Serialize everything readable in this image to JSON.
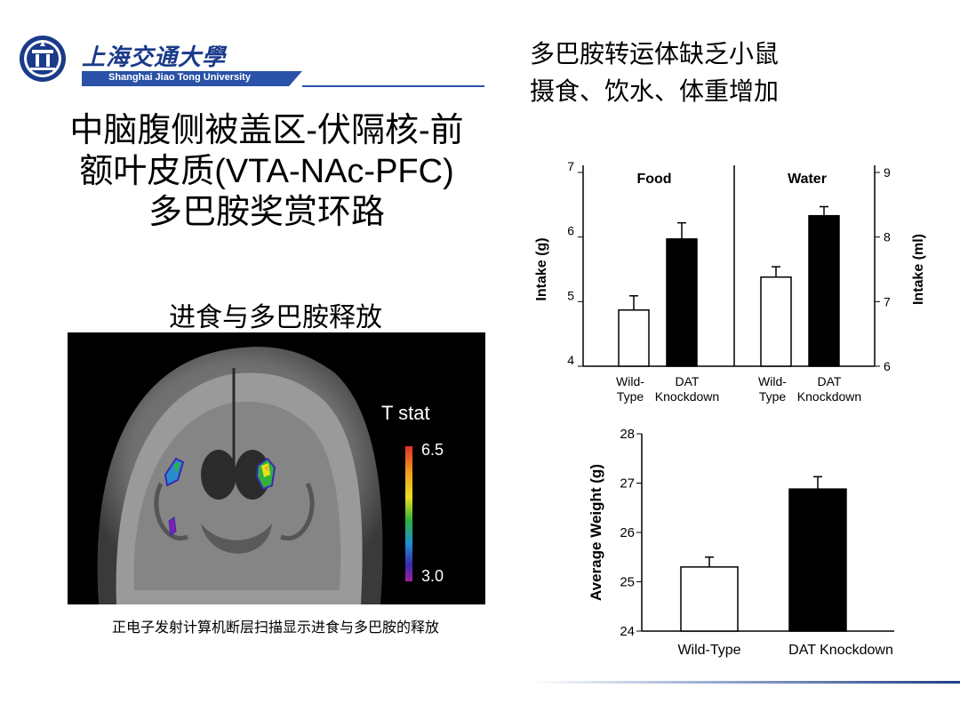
{
  "logo": {
    "name_cn": "上海交通大學",
    "name_en": "Shanghai Jiao Tong University"
  },
  "title": {
    "lines": [
      "中脑腹侧被盖区-伏隔核-前",
      "额叶皮质(VTA-NAc-PFC)",
      "多巴胺奖赏环路"
    ]
  },
  "right_title": {
    "lines": [
      "多巴胺转运体缺乏小鼠",
      "摄食、饮水、体重增加"
    ]
  },
  "brain": {
    "heading": "进食与多巴胺释放",
    "tstat_label": "T stat",
    "scale_max": "6.5",
    "scale_min": "3.0",
    "caption": "正电子发射计算机断层扫描显示进食与多巴胺的释放"
  },
  "chart_data": [
    {
      "type": "bar",
      "panels": [
        {
          "title": "Food",
          "axis": "left",
          "ylabel": "Intake (g)",
          "ylim": [
            4,
            7
          ],
          "yticks": [
            4,
            5,
            6,
            7
          ],
          "categories": [
            "Wild-\nType",
            "DAT\nKnockdown"
          ],
          "values": [
            4.87,
            5.97
          ],
          "errors": [
            0.22,
            0.25
          ],
          "colors": [
            "#ffffff",
            "#000000"
          ]
        },
        {
          "title": "Water",
          "axis": "right",
          "ylabel": "Intake (ml)",
          "ylim": [
            6,
            9
          ],
          "yticks": [
            6,
            7,
            8,
            9
          ],
          "categories": [
            "Wild-\nType",
            "DAT\nKnockdown"
          ],
          "values": [
            7.38,
            8.33
          ],
          "errors": [
            0.16,
            0.14
          ],
          "colors": [
            "#ffffff",
            "#000000"
          ]
        }
      ]
    },
    {
      "type": "bar",
      "ylabel": "Average Weight (g)",
      "ylim": [
        24,
        28
      ],
      "yticks": [
        24,
        25,
        26,
        27,
        28
      ],
      "categories": [
        "Wild-Type",
        "DAT Knockdown"
      ],
      "values": [
        25.3,
        26.88
      ],
      "errors": [
        0.2,
        0.25
      ],
      "colors": [
        "#ffffff",
        "#000000"
      ]
    }
  ]
}
